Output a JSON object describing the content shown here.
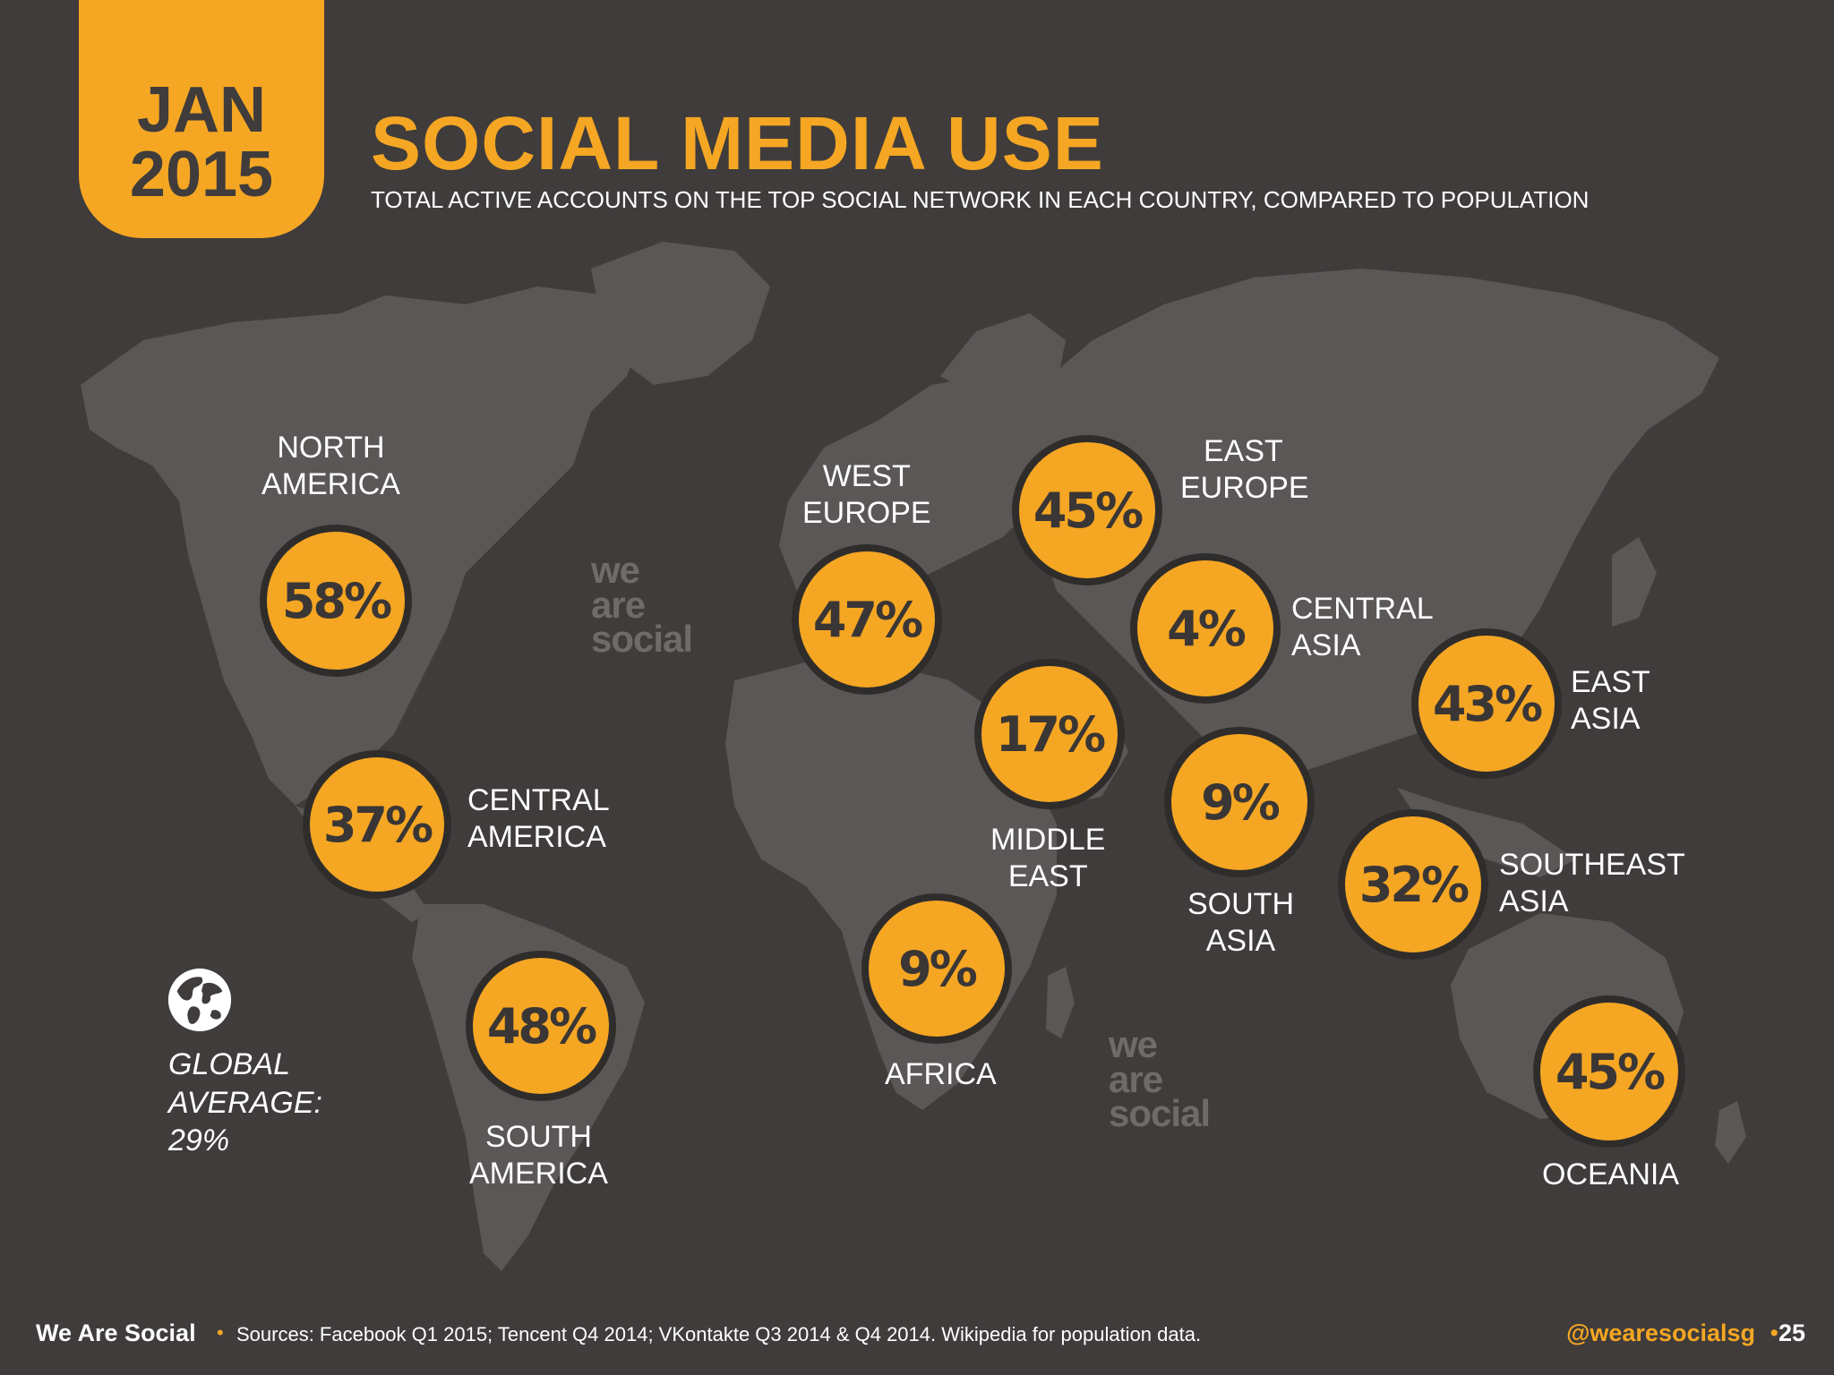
{
  "badge": {
    "month": "JAN",
    "year": "2015"
  },
  "header": {
    "title": "SOCIAL MEDIA USE",
    "subtitle": "TOTAL ACTIVE ACCOUNTS ON THE TOP SOCIAL NETWORK IN EACH COUNTRY, COMPARED TO POPULATION"
  },
  "watermark": {
    "line1": "we",
    "line2": "are",
    "line3": "social"
  },
  "regions": [
    {
      "name_line1": "NORTH",
      "name_line2": "AMERICA",
      "value": "58%"
    },
    {
      "name_line1": "CENTRAL",
      "name_line2": "AMERICA",
      "value": "37%"
    },
    {
      "name_line1": "SOUTH",
      "name_line2": "AMERICA",
      "value": "48%"
    },
    {
      "name_line1": "WEST",
      "name_line2": "EUROPE",
      "value": "47%"
    },
    {
      "name_line1": "EAST",
      "name_line2": "EUROPE",
      "value": "45%"
    },
    {
      "name_line1": "MIDDLE",
      "name_line2": "EAST",
      "value": "17%"
    },
    {
      "name_line1": "CENTRAL",
      "name_line2": "ASIA",
      "value": "4%"
    },
    {
      "name_line1": "AFRICA",
      "name_line2": "",
      "value": "9%"
    },
    {
      "name_line1": "SOUTH",
      "name_line2": "ASIA",
      "value": "9%"
    },
    {
      "name_line1": "EAST",
      "name_line2": "ASIA",
      "value": "43%"
    },
    {
      "name_line1": "SOUTHEAST",
      "name_line2": "ASIA",
      "value": "32%"
    },
    {
      "name_line1": "OCEANIA",
      "name_line2": "",
      "value": "45%"
    }
  ],
  "global": {
    "line1": "GLOBAL",
    "line2": "AVERAGE:",
    "value": "29%"
  },
  "footer": {
    "brand": "We Are Social",
    "separator": "•",
    "sources": "Sources: Facebook Q1 2015; Tencent Q4 2014; VKontakte Q3 2014 & Q4 2014. Wikipedia for population data.",
    "handle": "@wearesocialsg",
    "page": "25"
  },
  "colors": {
    "accent": "#f5a623",
    "background": "#3f3c3b",
    "land": "#5a5756"
  },
  "icons": {
    "global": "globe-icon"
  }
}
